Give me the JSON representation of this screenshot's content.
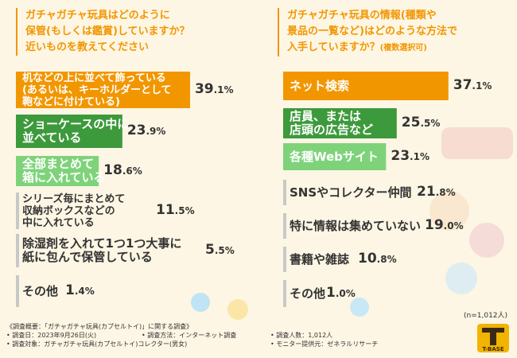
{
  "colors": {
    "orange": "#f29600",
    "dark_green": "#3d9a3c",
    "light_green": "#7ed37a",
    "gray": "#c8c8c8",
    "background": "#fdf6e4"
  },
  "left": {
    "title": "ガチャガチャ玩具はどのように\n保管(もしくは鑑賞)していますか？\n近いものを教えてください"
  },
  "right": {
    "title": "ガチャガチャ玩具の情報(種類や\n景品の一覧など)はどのような方法で\n入手していますか？",
    "title_suffix": "(複数選択可)"
  },
  "chart_data": [
    {
      "type": "bar",
      "orientation": "horizontal",
      "unit": "%",
      "categories": [
        "机などの上に並べて飾っている\n(あるいは、キーホルダーとして\n鞄などに付けている)",
        "ショーケースの中に\n並べている",
        "全部まとめて\n箱に入れている",
        "シリーズ毎にまとめて\n収納ボックスなどの\n中に入れている",
        "除湿剤を入れて1つ1つ大事に\n紙に包んで保管している",
        "その他"
      ],
      "values": [
        39.1,
        23.9,
        18.6,
        11.5,
        5.5,
        1.4
      ],
      "value_labels": [
        "39.1",
        "23.9",
        "18.6",
        "11.5",
        "5.5",
        "1.4"
      ],
      "bar_colors": [
        "#f29600",
        "#3d9a3c",
        "#7ed37a",
        "#c8c8c8",
        "#c8c8c8",
        "#c8c8c8"
      ]
    },
    {
      "type": "bar",
      "orientation": "horizontal",
      "unit": "%",
      "categories": [
        "ネット検索",
        "店員、または\n店頭の広告など",
        "各種Webサイト",
        "SNSやコレクター仲間",
        "特に情報は集めていない",
        "書籍や雑誌",
        "その他"
      ],
      "values": [
        37.1,
        25.5,
        23.1,
        21.8,
        19.0,
        10.8,
        1.0
      ],
      "value_labels": [
        "37.1",
        "25.5",
        "23.1",
        "21.8",
        "19.0",
        "10.8",
        "1.0"
      ],
      "bar_colors": [
        "#f29600",
        "#3d9a3c",
        "#7ed37a",
        "#c8c8c8",
        "#c8c8c8",
        "#c8c8c8",
        "#c8c8c8"
      ],
      "note": "(n=1,012人)"
    }
  ],
  "footer": {
    "summary": "《調査概要：「ガチャガチャ玩具(カプセルトイ)」に関する調査》",
    "date": "• 調査日：2023年9月26日(火)",
    "method": "• 調査方法：インターネット調査",
    "count": "• 調査人数：1,012人",
    "target": "• 調査対象：ガチャガチャ玩具(カプセルトイ)コレクター(男女)",
    "provider": "• モニター提供元：ゼネラルリサーチ"
  },
  "logo": {
    "text": "T-BASE"
  }
}
